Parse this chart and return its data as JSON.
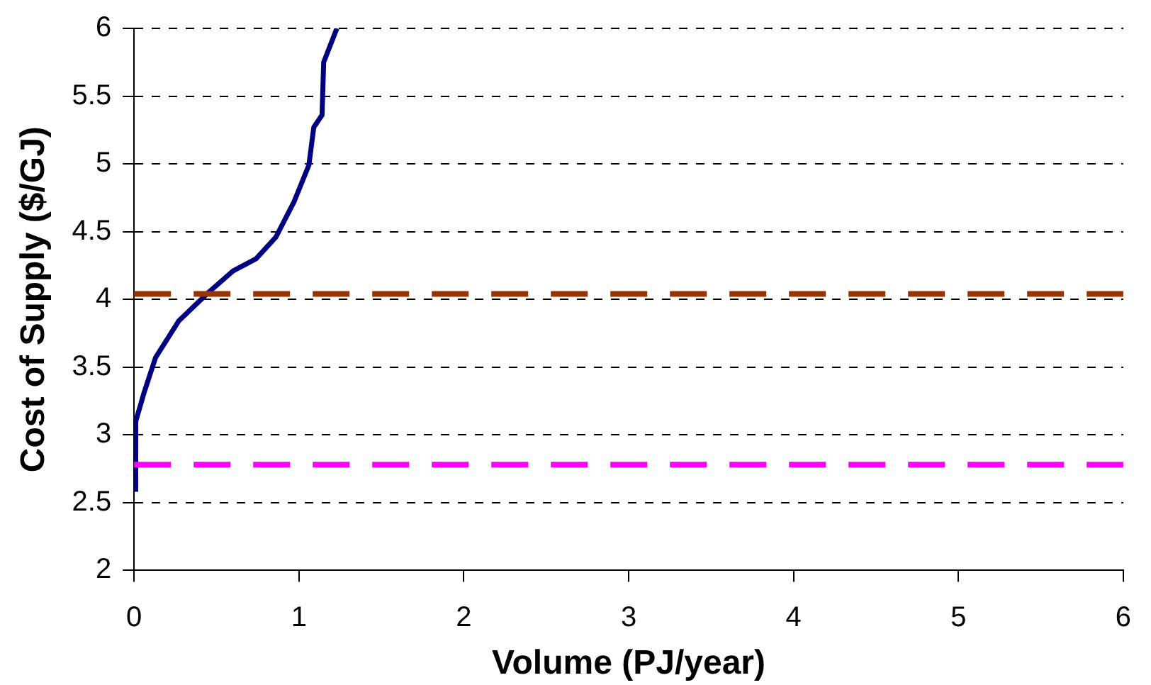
{
  "chart_data": {
    "type": "line",
    "xlabel": "Volume (PJ/year)",
    "ylabel": "Cost of Supply ($/GJ)",
    "xlim": [
      0,
      6
    ],
    "xticks": [
      0,
      1,
      2,
      3,
      4,
      5,
      6
    ],
    "ylim": [
      2,
      6
    ],
    "yticks": [
      2,
      2.5,
      3,
      3.5,
      4,
      4.5,
      5,
      5.5,
      6
    ],
    "grid": "y",
    "legend": false,
    "marker": "none",
    "line_style": "solid",
    "series": [
      {
        "color": "#000080",
        "x": [
          0.01,
          0.01,
          0.06,
          0.13,
          0.27,
          0.45,
          0.6,
          0.74,
          0.86,
          0.97,
          1.06,
          1.09,
          1.14,
          1.15,
          1.23
        ],
        "values": [
          2.58,
          3.1,
          3.31,
          3.57,
          3.84,
          4.05,
          4.21,
          4.3,
          4.46,
          4.72,
          4.99,
          5.27,
          5.36,
          5.75,
          6.0
        ]
      }
    ],
    "ref_lines": [
      {
        "axis": "y",
        "value": 4.04,
        "color": "#993300",
        "line_style": "dashed"
      },
      {
        "axis": "y",
        "value": 2.78,
        "color": "#ff00ff",
        "line_style": "dashed"
      }
    ]
  }
}
